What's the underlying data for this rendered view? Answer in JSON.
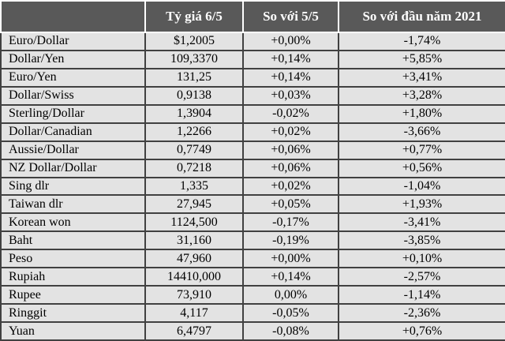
{
  "colors": {
    "header_bg": "#595959",
    "header_text": "#ffffff",
    "row_bg": "#e3e3e3",
    "grid_border": "#414141",
    "header_divider": "#ffffff"
  },
  "chart_data": {
    "type": "table",
    "title": "",
    "columns": [
      "",
      "Tỷ giá 6/5",
      "So với 5/5",
      "So với đầu năm 2021"
    ],
    "rows": [
      [
        "Euro/Dollar",
        "$1,2005",
        "+0,00%",
        "-1,74%"
      ],
      [
        "Dollar/Yen",
        "109,3370",
        "+0,14%",
        "+5,85%"
      ],
      [
        "Euro/Yen",
        "131,25",
        "+0,14%",
        "+3,41%"
      ],
      [
        "Dollar/Swiss",
        "0,9138",
        "+0,03%",
        "+3,28%"
      ],
      [
        "Sterling/Dollar",
        "1,3904",
        "-0,02%",
        "+1,80%"
      ],
      [
        "Dollar/Canadian",
        "1,2266",
        "+0,02%",
        "-3,66%"
      ],
      [
        "Aussie/Dollar",
        "0,7749",
        "+0,06%",
        "+0,77%"
      ],
      [
        "NZ Dollar/Dollar",
        "0,7218",
        "+0,06%",
        "+0,56%"
      ],
      [
        "Sing dlr",
        "1,335",
        "+0,02%",
        "-1,04%"
      ],
      [
        "Taiwan dlr",
        "27,945",
        "+0,05%",
        "+1,93%"
      ],
      [
        "Korean won",
        "1124,500",
        "-0,17%",
        "-3,41%"
      ],
      [
        "Baht",
        "31,160",
        "-0,19%",
        "-3,85%"
      ],
      [
        "Peso",
        "47,960",
        "+0,00%",
        "+0,10%"
      ],
      [
        "Rupiah",
        "14410,000",
        "+0,14%",
        "-2,57%"
      ],
      [
        "Rupee",
        "73,910",
        "0,00%",
        "-1,14%"
      ],
      [
        "Ringgit",
        "4,117",
        "-0,05%",
        "-2,36%"
      ],
      [
        "Yuan",
        "6,4797",
        "-0,08%",
        "+0,76%"
      ]
    ]
  }
}
